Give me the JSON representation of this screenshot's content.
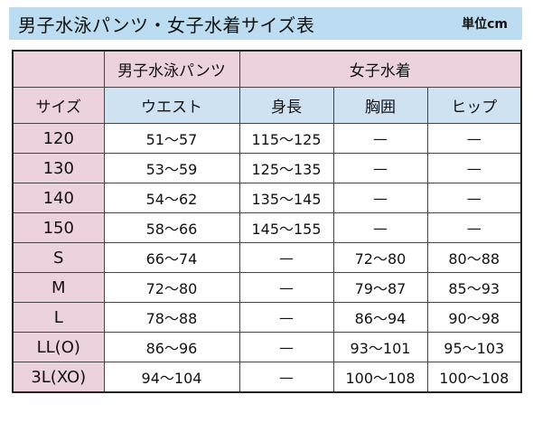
{
  "title": "男子水泳パンツ・女子水着サイズ表",
  "unit": "単位cm",
  "header": {
    "group_boys": "男子水泳パンツ",
    "group_girls": "女子水着",
    "size": "サイズ",
    "waist": "ウエスト",
    "height": "身長",
    "chest": "胸囲",
    "hip": "ヒップ"
  },
  "rows": [
    {
      "size": "120",
      "waist": "51～57",
      "height": "115～125",
      "chest": "—",
      "hip": "—"
    },
    {
      "size": "130",
      "waist": "53～59",
      "height": "125～135",
      "chest": "—",
      "hip": "—"
    },
    {
      "size": "140",
      "waist": "54～62",
      "height": "135～145",
      "chest": "—",
      "hip": "—"
    },
    {
      "size": "150",
      "waist": "58～66",
      "height": "145～155",
      "chest": "—",
      "hip": "—"
    },
    {
      "size": "S",
      "waist": "66～74",
      "height": "—",
      "chest": "72～80",
      "hip": "80～88"
    },
    {
      "size": "M",
      "waist": "72～80",
      "height": "—",
      "chest": "79～87",
      "hip": "85～93"
    },
    {
      "size": "L",
      "waist": "78～88",
      "height": "—",
      "chest": "86～94",
      "hip": "90～98"
    },
    {
      "size": "LL(O)",
      "waist": "86～96",
      "height": "—",
      "chest": "93～101",
      "hip": "95～103"
    },
    {
      "size": "3L(XO)",
      "waist": "94～104",
      "height": "—",
      "chest": "100～108",
      "hip": "100～108"
    }
  ],
  "colors": {
    "title_bar": "#bcdcf1",
    "pink": "#ecd2dc",
    "blue": "#cfe2f2"
  }
}
